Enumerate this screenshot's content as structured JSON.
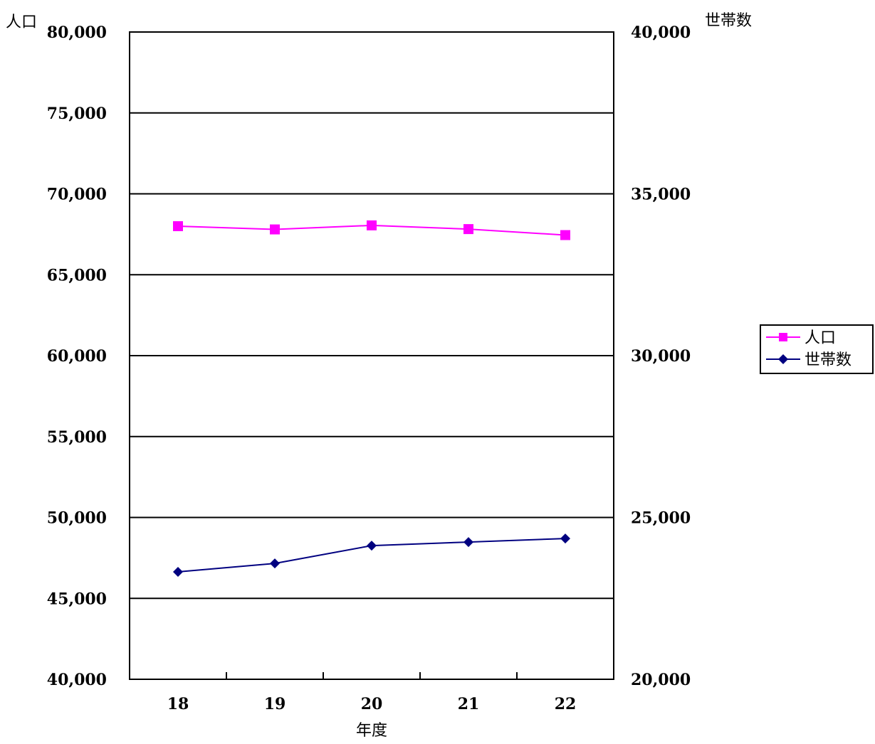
{
  "chart_data": {
    "type": "line",
    "title": "",
    "xlabel": "年度",
    "ylabel_left": "人口",
    "ylabel_right": "世帯数",
    "categories": [
      "18",
      "19",
      "20",
      "21",
      "22"
    ],
    "y_left": {
      "min": 40000,
      "max": 80000,
      "step": 5000,
      "ticks": [
        "40,000",
        "45,000",
        "50,000",
        "55,000",
        "60,000",
        "65,000",
        "70,000",
        "75,000",
        "80,000"
      ]
    },
    "y_right": {
      "min": 20000,
      "max": 40000,
      "step": 2500,
      "ticks": [
        "20,000",
        "25,000",
        "30,000",
        "35,000",
        "40,000"
      ]
    },
    "grid": true,
    "legend_position": "right",
    "series": [
      {
        "name": "人口",
        "axis": "left",
        "color": "#ff00ff",
        "marker": "square",
        "values": [
          68000,
          67800,
          68050,
          67820,
          67450
        ]
      },
      {
        "name": "世帯数",
        "axis": "right",
        "color": "#000080",
        "marker": "diamond",
        "values": [
          23320,
          23580,
          24130,
          24240,
          24350
        ]
      }
    ]
  }
}
